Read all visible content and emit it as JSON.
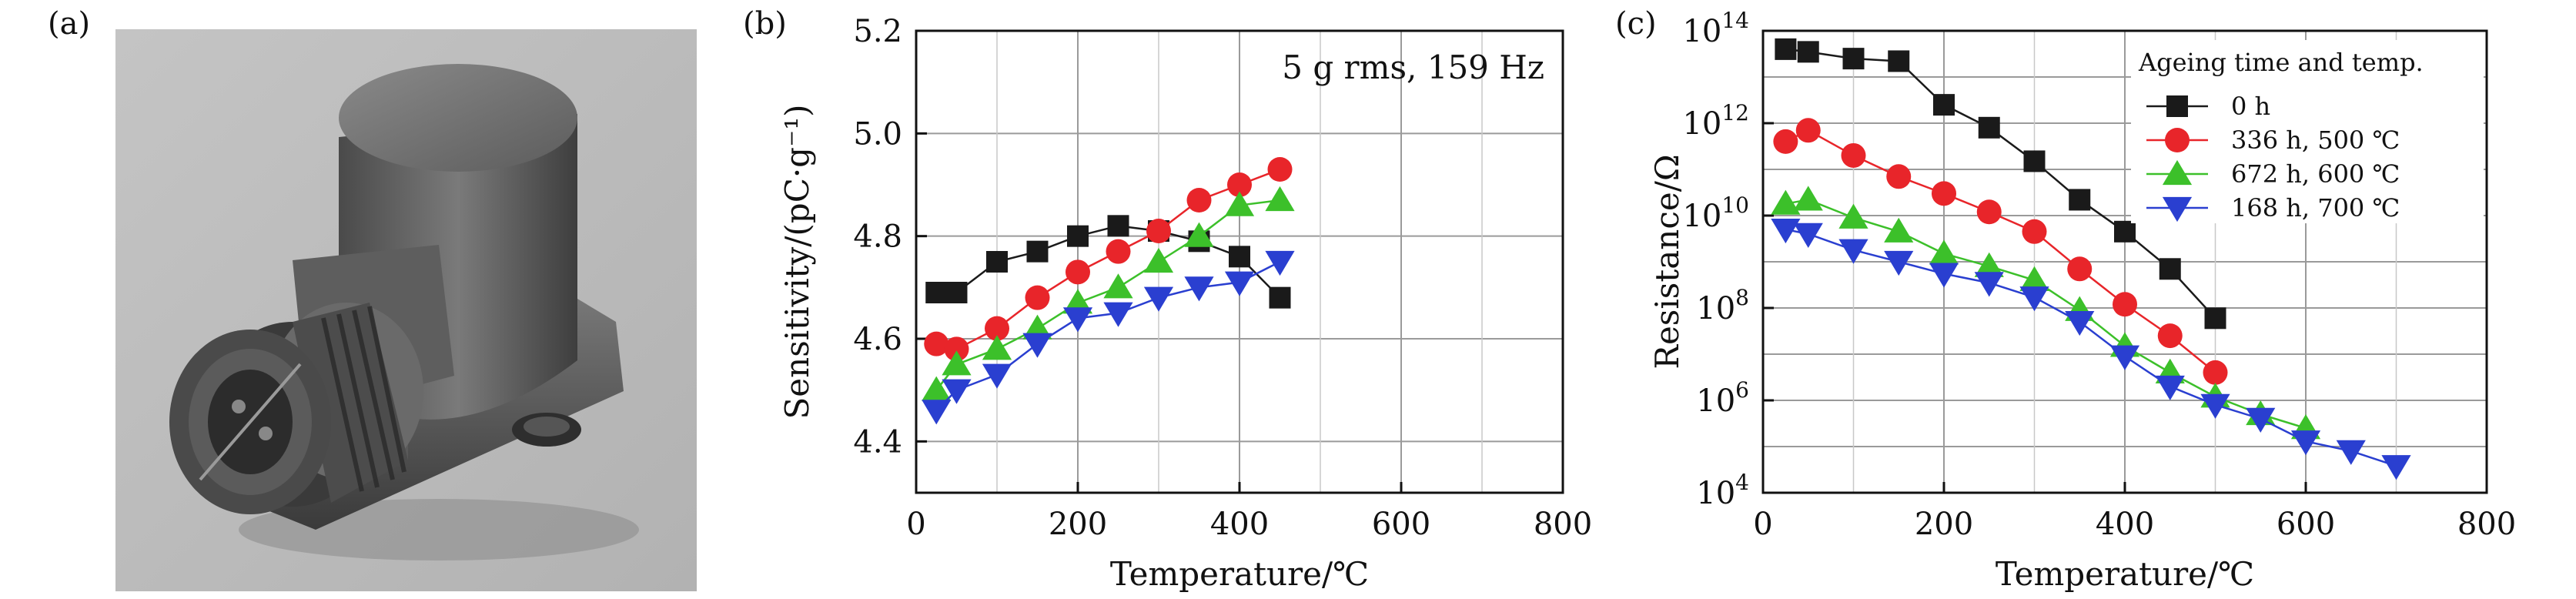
{
  "panels": {
    "a": "(a)",
    "b": "(b)",
    "c": "(c)"
  },
  "chart_data": [
    {
      "panel": "(b)",
      "type": "line",
      "annotation": "5 g rms, 159 Hz",
      "xlabel": "Temperature/℃",
      "ylabel": "Sensitivity/(pC·g⁻¹)",
      "xlim": [
        0,
        800
      ],
      "ylim": [
        4.3,
        5.2
      ],
      "xticks": [
        0,
        200,
        400,
        600,
        800
      ],
      "yticks": [
        4.4,
        4.6,
        4.8,
        5.0,
        5.2
      ],
      "grid": true,
      "series": [
        {
          "marker": "square",
          "color": "#1a1a1a",
          "x": [
            25,
            50,
            100,
            150,
            200,
            250,
            300,
            350,
            400,
            450
          ],
          "y": [
            4.69,
            4.69,
            4.75,
            4.77,
            4.8,
            4.82,
            4.81,
            4.79,
            4.76,
            4.68
          ]
        },
        {
          "marker": "circle",
          "color": "#e8252a",
          "x": [
            25,
            50,
            100,
            150,
            200,
            250,
            300,
            350,
            400,
            450
          ],
          "y": [
            4.59,
            4.58,
            4.62,
            4.68,
            4.73,
            4.77,
            4.81,
            4.87,
            4.9,
            4.93
          ]
        },
        {
          "marker": "triangle-up",
          "color": "#3cc02a",
          "x": [
            25,
            50,
            100,
            150,
            200,
            250,
            300,
            350,
            400,
            450
          ],
          "y": [
            4.5,
            4.55,
            4.58,
            4.62,
            4.67,
            4.7,
            4.75,
            4.8,
            4.86,
            4.87
          ]
        },
        {
          "marker": "triangle-down",
          "color": "#2a3fd0",
          "x": [
            25,
            50,
            100,
            150,
            200,
            250,
            300,
            350,
            400,
            450
          ],
          "y": [
            4.46,
            4.5,
            4.53,
            4.59,
            4.64,
            4.65,
            4.68,
            4.7,
            4.71,
            4.75
          ]
        }
      ]
    },
    {
      "panel": "(c)",
      "type": "line",
      "xlabel": "Temperature/℃",
      "ylabel": "Resistance/Ω",
      "yscale": "log",
      "xlim": [
        0,
        800
      ],
      "ylim": [
        10000,
        100000000000000
      ],
      "xticks": [
        0,
        200,
        400,
        600,
        800
      ],
      "yticks": [
        4,
        6,
        8,
        10,
        12,
        14
      ],
      "grid": true,
      "legend": {
        "title": "Ageing time and temp.",
        "placement": "top-right"
      },
      "series": [
        {
          "name": "0 h",
          "marker": "square",
          "color": "#1a1a1a",
          "x": [
            25,
            50,
            100,
            150,
            200,
            250,
            300,
            350,
            400,
            450,
            500
          ],
          "y": [
            40000000000000,
            35000000000000,
            25000000000000,
            22000000000000,
            2500000000000,
            800000000000,
            150000000000,
            22000000000,
            4500000000,
            700000000,
            60000000
          ]
        },
        {
          "name": "336 h, 500 ℃",
          "marker": "circle",
          "color": "#e8252a",
          "x": [
            25,
            50,
            100,
            150,
            200,
            250,
            300,
            350,
            400,
            450,
            500
          ],
          "y": [
            400000000000,
            700000000000,
            200000000000,
            70000000000,
            30000000000,
            12000000000,
            4500000000,
            700000000,
            120000000,
            25000000,
            4000000
          ]
        },
        {
          "name": "672 h, 600 ℃",
          "marker": "triangle-up",
          "color": "#3cc02a",
          "x": [
            25,
            50,
            100,
            150,
            200,
            250,
            300,
            350,
            400,
            450,
            500,
            550,
            600
          ],
          "y": [
            18000000000,
            22000000000,
            9000000000,
            4500000000,
            1500000000,
            800000000,
            400000000,
            90000000,
            15000000,
            4000000,
            1200000,
            500000,
            250000
          ]
        },
        {
          "name": "168 h, 700 ℃",
          "marker": "triangle-down",
          "color": "#2a3fd0",
          "x": [
            25,
            50,
            100,
            150,
            200,
            250,
            300,
            350,
            400,
            450,
            500,
            550,
            600,
            650,
            700
          ],
          "y": [
            5000000000,
            4000000000,
            1800000000,
            1000000000,
            550000000,
            350000000,
            170000000,
            50000000,
            9000000,
            2000000,
            800000,
            400000,
            130000,
            80000,
            38000
          ]
        }
      ]
    }
  ]
}
